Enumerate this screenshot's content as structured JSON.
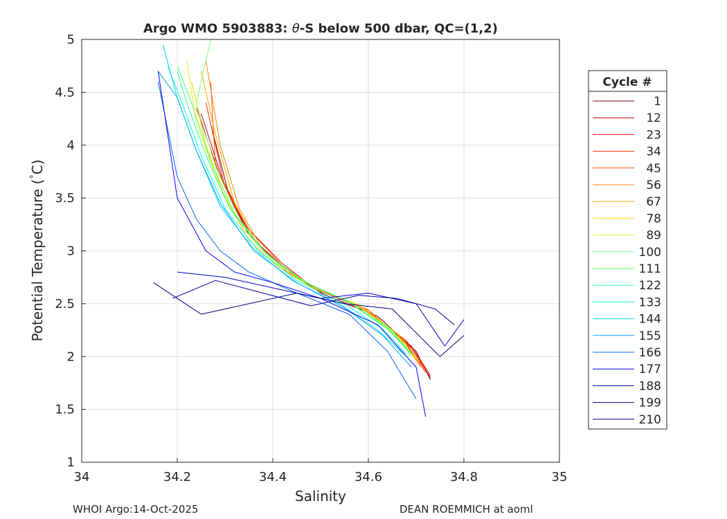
{
  "chart_data": {
    "type": "line",
    "title_prefix": "Argo WMO 5903883: ",
    "title_theta": "θ",
    "title_suffix": "-S below 500 dbar,  QC=(1,2)",
    "xlabel": "Salinity",
    "ylabel": "Potential Temperature (",
    "ylabel_deg": "°",
    "ylabel_unit": "C)",
    "xlim": [
      34,
      35
    ],
    "ylim": [
      1,
      5
    ],
    "xticks": [
      34,
      34.2,
      34.4,
      34.6,
      34.8,
      35
    ],
    "xtick_labels": [
      "34",
      "34.2",
      "34.4",
      "34.6",
      "34.8",
      "35"
    ],
    "yticks": [
      1,
      1.5,
      2,
      2.5,
      3,
      3.5,
      4,
      4.5,
      5
    ],
    "ytick_labels": [
      "1",
      "1.5",
      "2",
      "2.5",
      "3",
      "3.5",
      "4",
      "4.5",
      "5"
    ],
    "grid": true,
    "legend": {
      "title": "Cycle #",
      "placement": "right-outside",
      "entries": [
        {
          "label": "1",
          "color": "#7f0000"
        },
        {
          "label": "12",
          "color": "#b20000"
        },
        {
          "label": "23",
          "color": "#e00000"
        },
        {
          "label": "34",
          "color": "#ff2a00"
        },
        {
          "label": "45",
          "color": "#ff5500"
        },
        {
          "label": "56",
          "color": "#ff8000"
        },
        {
          "label": "67",
          "color": "#ffaa00"
        },
        {
          "label": "78",
          "color": "#ffd500"
        },
        {
          "label": "89",
          "color": "#d4ff2a"
        },
        {
          "label": "100",
          "color": "#80ff80"
        },
        {
          "label": "111",
          "color": "#55ff55"
        },
        {
          "label": "122",
          "color": "#2aff9f"
        },
        {
          "label": "133",
          "color": "#00ffd5"
        },
        {
          "label": "144",
          "color": "#00d5ff"
        },
        {
          "label": "155",
          "color": "#00aaff"
        },
        {
          "label": "166",
          "color": "#0066ff"
        },
        {
          "label": "177",
          "color": "#0000ff"
        },
        {
          "label": "188",
          "color": "#0000cc"
        },
        {
          "label": "199",
          "color": "#0000a0"
        },
        {
          "label": "210",
          "color": "#00007f"
        }
      ]
    },
    "series": [
      {
        "name": "1",
        "x": [
          34.73,
          34.7,
          34.62,
          34.52,
          34.43,
          34.36,
          34.31,
          34.27
        ],
        "y": [
          1.78,
          2.05,
          2.38,
          2.56,
          2.8,
          3.1,
          3.5,
          4.2
        ]
      },
      {
        "name": "12",
        "x": [
          34.73,
          34.69,
          34.61,
          34.51,
          34.42,
          34.35,
          34.3,
          34.25
        ],
        "y": [
          1.8,
          2.08,
          2.4,
          2.58,
          2.85,
          3.15,
          3.6,
          4.3
        ]
      },
      {
        "name": "23",
        "x": [
          34.73,
          34.69,
          34.6,
          34.5,
          34.42,
          34.35,
          34.29,
          34.24
        ],
        "y": [
          1.82,
          2.1,
          2.42,
          2.6,
          2.88,
          3.2,
          3.7,
          4.35
        ]
      },
      {
        "name": "34",
        "x": [
          34.72,
          34.68,
          34.6,
          34.5,
          34.43,
          34.36,
          34.3,
          34.26
        ],
        "y": [
          1.85,
          2.12,
          2.44,
          2.62,
          2.82,
          3.1,
          3.6,
          4.4
        ]
      },
      {
        "name": "45",
        "x": [
          34.72,
          34.68,
          34.59,
          34.49,
          34.42,
          34.35,
          34.28,
          34.27
        ],
        "y": [
          1.88,
          2.15,
          2.45,
          2.64,
          2.86,
          3.2,
          3.8,
          4.6
        ]
      },
      {
        "name": "56",
        "x": [
          34.71,
          34.67,
          34.59,
          34.5,
          34.44,
          34.38,
          34.33,
          34.29,
          34.26
        ],
        "y": [
          1.9,
          2.18,
          2.46,
          2.63,
          2.78,
          3.0,
          3.4,
          4.0,
          4.8
        ]
      },
      {
        "name": "67",
        "x": [
          34.71,
          34.66,
          34.58,
          34.49,
          34.43,
          34.37,
          34.32,
          34.28,
          34.25
        ],
        "y": [
          1.93,
          2.2,
          2.48,
          2.65,
          2.8,
          3.05,
          3.45,
          4.1,
          4.7
        ]
      },
      {
        "name": "78",
        "x": [
          34.7,
          34.66,
          34.58,
          34.48,
          34.41,
          34.35,
          34.3,
          34.26,
          34.23
        ],
        "y": [
          1.96,
          2.22,
          2.49,
          2.66,
          2.85,
          3.1,
          3.5,
          4.0,
          4.6
        ]
      },
      {
        "name": "89",
        "x": [
          34.7,
          34.65,
          34.57,
          34.48,
          34.4,
          34.34,
          34.29,
          34.24,
          34.22
        ],
        "y": [
          1.98,
          2.24,
          2.5,
          2.68,
          2.9,
          3.2,
          3.6,
          4.2,
          4.8
        ]
      },
      {
        "name": "100",
        "x": [
          34.69,
          34.65,
          34.57,
          34.47,
          34.39,
          34.33,
          34.28,
          34.24,
          34.27
        ],
        "y": [
          2.0,
          2.25,
          2.5,
          2.7,
          2.95,
          3.3,
          3.8,
          4.4,
          5.0
        ]
      },
      {
        "name": "111",
        "x": [
          34.69,
          34.64,
          34.56,
          34.46,
          34.38,
          34.32,
          34.27,
          34.23,
          34.2
        ],
        "y": [
          2.02,
          2.26,
          2.51,
          2.72,
          3.0,
          3.35,
          3.85,
          4.4,
          4.75
        ]
      },
      {
        "name": "122",
        "x": [
          34.69,
          34.64,
          34.56,
          34.46,
          34.38,
          34.31,
          34.26,
          34.22,
          34.2
        ],
        "y": [
          2.03,
          2.27,
          2.51,
          2.72,
          3.0,
          3.4,
          3.9,
          4.4,
          4.7
        ]
      },
      {
        "name": "133",
        "x": [
          34.68,
          34.63,
          34.55,
          34.45,
          34.37,
          34.3,
          34.25,
          34.21,
          34.18
        ],
        "y": [
          2.02,
          2.26,
          2.5,
          2.72,
          3.0,
          3.4,
          3.9,
          4.4,
          4.75
        ]
      },
      {
        "name": "144",
        "x": [
          34.68,
          34.62,
          34.54,
          34.44,
          34.36,
          34.29,
          34.24,
          34.2,
          34.17
        ],
        "y": [
          2.0,
          2.25,
          2.5,
          2.72,
          3.02,
          3.42,
          3.95,
          4.45,
          4.95
        ]
      },
      {
        "name": "155",
        "x": [
          34.69,
          34.63,
          34.55,
          34.45,
          34.36,
          34.29,
          34.24,
          34.2,
          34.16
        ],
        "y": [
          1.9,
          2.2,
          2.46,
          2.7,
          3.0,
          3.45,
          3.95,
          4.45,
          4.7
        ]
      },
      {
        "name": "166",
        "x": [
          34.7,
          34.64,
          34.56,
          34.44,
          34.35,
          34.29,
          34.24,
          34.2,
          34.16
        ],
        "y": [
          1.6,
          2.05,
          2.4,
          2.62,
          2.8,
          3.0,
          3.3,
          3.7,
          4.6
        ]
      },
      {
        "name": "177",
        "x": [
          34.72,
          34.7,
          34.62,
          34.5,
          34.4,
          34.32,
          34.26,
          34.2,
          34.16
        ],
        "y": [
          1.43,
          1.9,
          2.3,
          2.55,
          2.7,
          2.8,
          3.0,
          3.5,
          4.7
        ]
      },
      {
        "name": "188",
        "x": [
          34.8,
          34.76,
          34.7,
          34.6,
          34.5,
          34.4,
          34.3,
          34.2
        ],
        "y": [
          2.35,
          2.1,
          2.5,
          2.6,
          2.55,
          2.65,
          2.75,
          2.8
        ]
      },
      {
        "name": "199",
        "x": [
          34.78,
          34.74,
          34.66,
          34.58,
          34.48,
          34.38,
          34.28,
          34.19
        ],
        "y": [
          2.3,
          2.45,
          2.55,
          2.58,
          2.48,
          2.6,
          2.72,
          2.55
        ]
      },
      {
        "name": "210",
        "x": [
          34.8,
          34.75,
          34.65,
          34.55,
          34.45,
          34.35,
          34.25,
          34.15
        ],
        "y": [
          2.2,
          2.0,
          2.45,
          2.5,
          2.6,
          2.5,
          2.4,
          2.7
        ]
      }
    ]
  },
  "footer": {
    "left": "WHOI Argo:14-Oct-2025",
    "right": "DEAN ROEMMICH at aoml"
  }
}
